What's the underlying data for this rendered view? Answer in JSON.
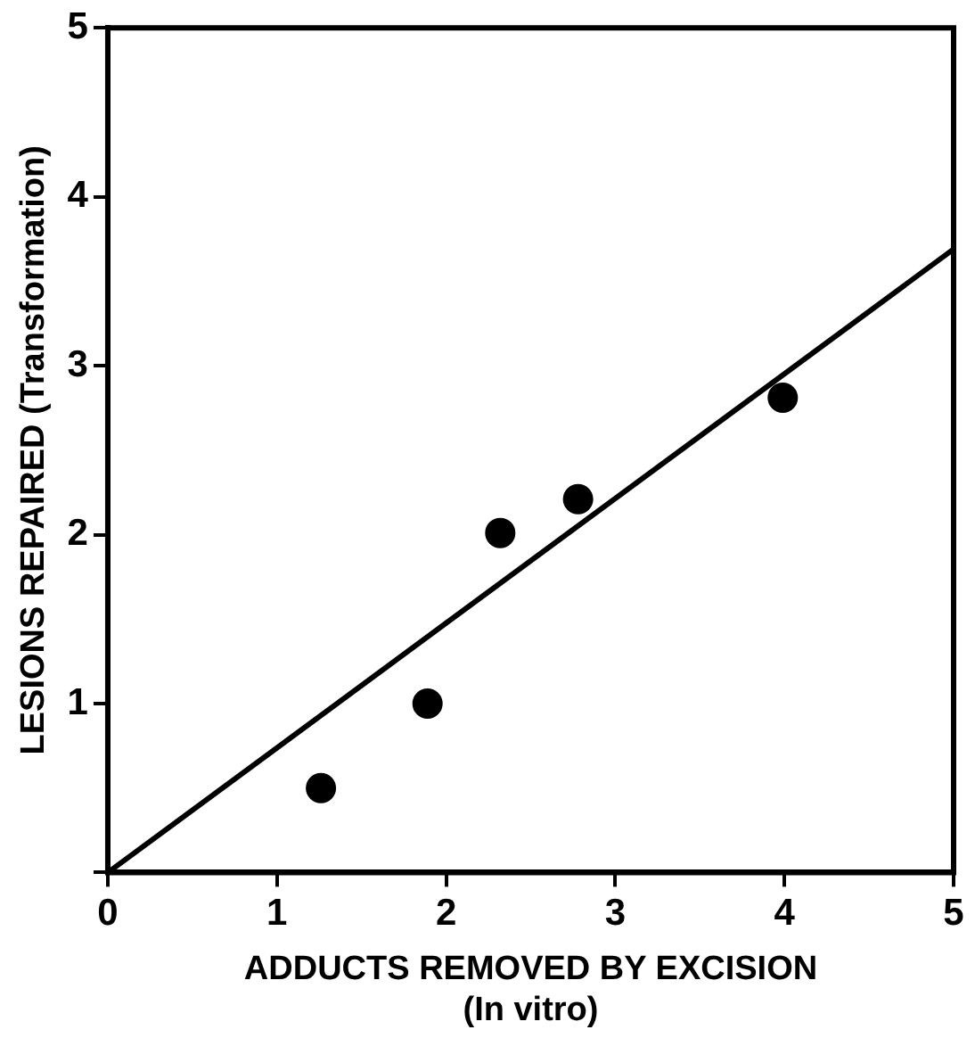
{
  "chart_data": {
    "type": "scatter",
    "xlabel": "ADDUCTS REMOVED BY EXCISION\n(In vitro)",
    "ylabel": "LESIONS REPAIRED (Transformation)",
    "xlim": [
      0,
      5
    ],
    "ylim": [
      0,
      5
    ],
    "xticks": [
      0,
      1,
      2,
      3,
      4,
      5
    ],
    "yticks": [
      {
        "value": 0,
        "label": null
      },
      1,
      2,
      3,
      4,
      5
    ],
    "grid": false,
    "legend": false,
    "marker": "circle",
    "series": [
      {
        "color": "#000000",
        "x": [
          1.26,
          1.89,
          2.32,
          2.78,
          3.99
        ],
        "values": [
          0.5,
          1.0,
          2.01,
          2.21,
          2.81
        ]
      },
      {
        "type": "line",
        "color": "#000000",
        "x": [
          0,
          5
        ],
        "values": [
          0,
          3.69
        ],
        "marker": "none",
        "line_style": "solid"
      }
    ]
  }
}
